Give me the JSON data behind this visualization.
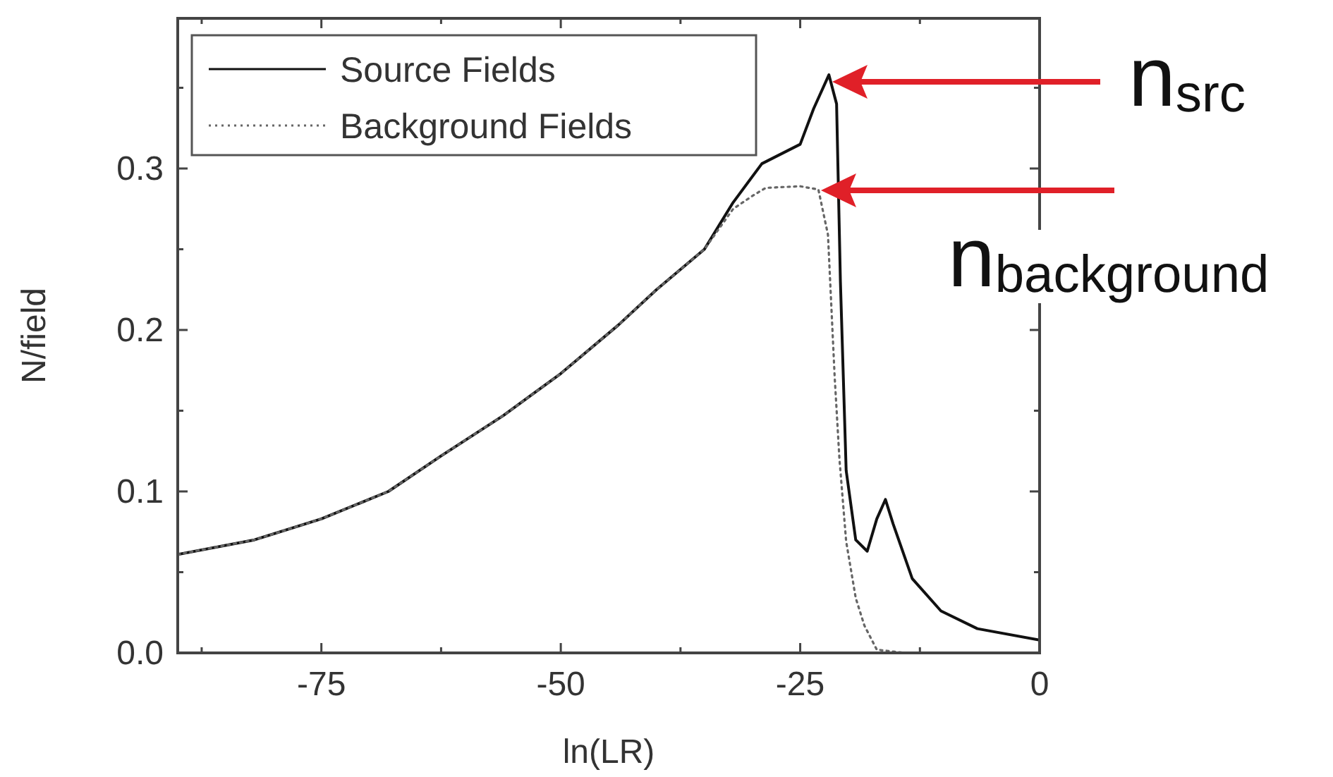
{
  "chart_data": {
    "type": "line",
    "xlabel": "ln(LR)",
    "ylabel": "N/field",
    "xlim": [
      -90,
      0
    ],
    "ylim": [
      0,
      0.393
    ],
    "xticks": [
      {
        "value": -87.5,
        "label": null
      },
      -75,
      {
        "value": -62.5,
        "label": null
      },
      -50,
      {
        "value": -37.5,
        "label": null
      },
      -25,
      {
        "value": -12.5,
        "label": null
      },
      0
    ],
    "yticks": [
      {
        "value": 0,
        "label": "0.0"
      },
      {
        "value": 0.05,
        "label": null
      },
      0.1,
      {
        "value": 0.15,
        "label": null
      },
      0.2,
      {
        "value": 0.25,
        "label": null
      },
      0.3,
      {
        "value": 0.35,
        "label": null
      }
    ],
    "grid": false,
    "legend": "top left",
    "series": [
      {
        "name": "Source Fields",
        "color": "#111111",
        "line_style": "solid",
        "x": [
          -90,
          -82,
          -75,
          -68,
          -62.5,
          -56,
          -50,
          -44,
          -40,
          -35,
          -32,
          -29,
          -25,
          -23.6,
          -22,
          -21.2,
          -20.8,
          -20.2,
          -19.2,
          -18,
          -17,
          -16.1,
          -15.3,
          -13.3,
          -10.3,
          -6.5,
          0
        ],
        "values": [
          0.061,
          0.07,
          0.083,
          0.1,
          0.122,
          0.147,
          0.173,
          0.203,
          0.225,
          0.25,
          0.279,
          0.303,
          0.315,
          0.337,
          0.358,
          0.34,
          0.23,
          0.113,
          0.07,
          0.063,
          0.083,
          0.095,
          0.08,
          0.046,
          0.026,
          0.015,
          0.008
        ]
      },
      {
        "name": "Background Fields",
        "color": "#666666",
        "line_style": "dotted",
        "x": [
          -90,
          -82,
          -75,
          -68,
          -62.5,
          -56,
          -50,
          -44,
          -40,
          -35,
          -32,
          -30,
          -28.6,
          -25,
          -23.1,
          -22.1,
          -21.4,
          -20.9,
          -20.2,
          -19.2,
          -18.3,
          -17,
          -14,
          0
        ],
        "values": [
          0.061,
          0.07,
          0.083,
          0.1,
          0.122,
          0.147,
          0.173,
          0.203,
          0.225,
          0.25,
          0.275,
          0.283,
          0.288,
          0.289,
          0.287,
          0.259,
          0.171,
          0.12,
          0.069,
          0.034,
          0.017,
          0.002,
          0,
          0
        ]
      }
    ],
    "annotations": [
      "n$_{src}$",
      "n$_{background}$"
    ]
  }
}
